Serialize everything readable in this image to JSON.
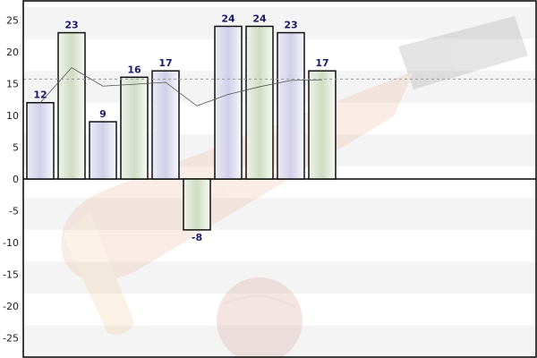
{
  "chart_data": {
    "type": "bar",
    "categories": [
      "",
      "",
      "",
      "",
      "",
      "",
      "",
      "",
      "",
      ""
    ],
    "values": [
      12,
      23,
      9,
      16,
      17,
      -8,
      24,
      24,
      23,
      17
    ],
    "ylim": [
      -28,
      28
    ],
    "yticks": [
      -25,
      -20,
      -15,
      -10,
      -5,
      0,
      5,
      10,
      15,
      20,
      25
    ],
    "tick_labels": [
      "-25",
      "-20",
      "-15",
      "-10",
      "-5",
      "0",
      "5",
      "10",
      "15",
      "20",
      "25"
    ],
    "data_labels": [
      "12",
      "23",
      "9",
      "16",
      "17",
      "-8",
      "24",
      "24",
      "23",
      "17"
    ],
    "trend_line": [
      12,
      17.5,
      14.6,
      14.9,
      15.2,
      11.5,
      13.3,
      14.5,
      15.5,
      15.6
    ],
    "average_line": 15.7,
    "bar_colors": [
      "#c8c8e8",
      "#c8dcbc",
      "#c8c8e8",
      "#c8dcbc",
      "#c8c8e8",
      "#c8dcbc",
      "#c8c8e8",
      "#c8dcbc",
      "#c8c8e8",
      "#c8dcbc"
    ],
    "colors": {
      "bar_border": "#111111",
      "axis": "#000000",
      "band": "#f4f4f4",
      "trend": "#555555",
      "average": "#999999",
      "label": "#1c1c6e"
    },
    "grid": true,
    "watermark": "cricket-bat-and-ball"
  }
}
